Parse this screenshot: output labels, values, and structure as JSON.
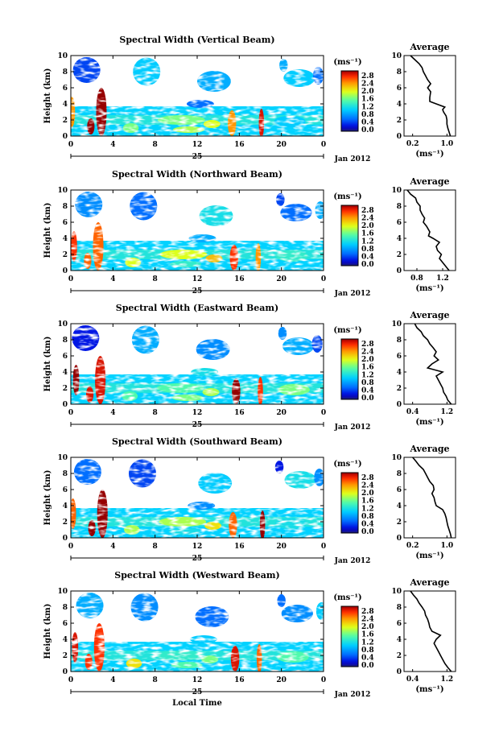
{
  "chart_data": [
    {
      "type": "heatmap",
      "title": "Spectral Width (Vertical Beam)",
      "ylabel": "Height (km)",
      "x_ticks": [
        "0",
        "4",
        "8",
        "12",
        "16",
        "20",
        "0"
      ],
      "y_ticks": [
        "0",
        "2",
        "4",
        "6",
        "8",
        "10"
      ],
      "ylim": [
        0,
        10
      ],
      "date_marker": "25",
      "date_label": "Jan 2012",
      "colorbar": {
        "unit_label": "(ms⁻¹)",
        "ticks": [
          "0.0",
          "0.4",
          "0.8",
          "1.2",
          "1.6",
          "2.0",
          "2.4",
          "2.8"
        ],
        "range": [
          0,
          2.8
        ]
      },
      "average": {
        "title": "Average",
        "xlabel": "(ms⁻¹)",
        "x_ticks": [
          "0.2",
          "1.0"
        ],
        "xlim": [
          0.0,
          1.2
        ],
        "height_km": [
          0,
          0.5,
          1,
          1.5,
          2,
          2.5,
          3,
          3.3,
          3.6,
          4,
          4.3,
          4.8,
          5.5,
          6,
          6.5,
          7,
          7.5,
          8,
          8.5,
          9,
          9.5,
          10
        ],
        "values": [
          1.08,
          1.05,
          1.02,
          1.0,
          1.0,
          0.98,
          0.92,
          0.9,
          0.95,
          0.75,
          0.6,
          0.6,
          0.62,
          0.55,
          0.62,
          0.55,
          0.5,
          0.45,
          0.42,
          0.35,
          0.25,
          0.15
        ]
      }
    },
    {
      "type": "heatmap",
      "title": "Spectral Width (Northward Beam)",
      "ylabel": "Height (km)",
      "x_ticks": [
        "0",
        "4",
        "8",
        "12",
        "16",
        "20",
        "0"
      ],
      "y_ticks": [
        "0",
        "2",
        "4",
        "6",
        "8",
        "10"
      ],
      "ylim": [
        0,
        10
      ],
      "date_marker": "25",
      "date_label": "Jan 2012",
      "colorbar": {
        "unit_label": "(ms⁻¹)",
        "ticks": [
          "0.0",
          "0.4",
          "0.8",
          "1.2",
          "1.6",
          "2.0",
          "2.4",
          "2.8"
        ],
        "range": [
          0,
          2.8
        ]
      },
      "average": {
        "title": "Average",
        "xlabel": "(ms⁻¹)",
        "x_ticks": [
          "0.8",
          "1.2"
        ],
        "xlim": [
          0.6,
          1.4
        ],
        "height_km": [
          0,
          0.5,
          1,
          1.5,
          2,
          2.5,
          3,
          3.5,
          4,
          4.3,
          4.8,
          5.5,
          6,
          6.5,
          7,
          7.5,
          8,
          8.5,
          9,
          9.5,
          10
        ],
        "values": [
          1.3,
          1.25,
          1.2,
          1.15,
          1.18,
          1.12,
          1.1,
          1.15,
          1.05,
          0.98,
          1.0,
          0.95,
          0.9,
          0.92,
          0.88,
          0.85,
          0.85,
          0.8,
          0.78,
          0.7,
          0.65
        ]
      }
    },
    {
      "type": "heatmap",
      "title": "Spectral Width (Eastward Beam)",
      "ylabel": "Height (km)",
      "x_ticks": [
        "0",
        "4",
        "8",
        "12",
        "16",
        "20",
        "0"
      ],
      "y_ticks": [
        "0",
        "2",
        "4",
        "6",
        "8",
        "10"
      ],
      "ylim": [
        0,
        10
      ],
      "date_marker": "25",
      "date_label": "Jan 2012",
      "colorbar": {
        "unit_label": "(ms⁻¹)",
        "ticks": [
          "0.0",
          "0.4",
          "0.8",
          "1.2",
          "1.6",
          "2.0",
          "2.4",
          "2.8"
        ],
        "range": [
          0,
          2.8
        ]
      },
      "average": {
        "title": "Average",
        "xlabel": "(ms⁻¹)",
        "x_ticks": [
          "0.4",
          "1.2"
        ],
        "xlim": [
          0.2,
          1.4
        ],
        "height_km": [
          0,
          0.5,
          1,
          1.5,
          2,
          2.5,
          3,
          3.5,
          4,
          4.5,
          5,
          5.5,
          6,
          6.5,
          7,
          7.5,
          8,
          8.5,
          9,
          9.5,
          10
        ],
        "values": [
          1.3,
          1.22,
          1.18,
          1.12,
          1.1,
          1.05,
          1.0,
          0.95,
          1.1,
          0.75,
          0.85,
          1.0,
          0.9,
          0.95,
          0.88,
          0.8,
          0.75,
          0.65,
          0.6,
          0.5,
          0.45
        ]
      }
    },
    {
      "type": "heatmap",
      "title": "Spectral Width (Southward Beam)",
      "ylabel": "Height (km)",
      "x_ticks": [
        "0",
        "4",
        "8",
        "12",
        "16",
        "20",
        "0"
      ],
      "y_ticks": [
        "0",
        "2",
        "4",
        "6",
        "8",
        "10"
      ],
      "ylim": [
        0,
        10
      ],
      "date_marker": "25",
      "date_label": "Jan 2012",
      "colorbar": {
        "unit_label": "(ms⁻¹)",
        "ticks": [
          "0.0",
          "0.4",
          "0.8",
          "1.2",
          "1.6",
          "2.0",
          "2.4",
          "2.8"
        ],
        "range": [
          0,
          2.8
        ]
      },
      "average": {
        "title": "Average",
        "xlabel": "(ms⁻¹)",
        "x_ticks": [
          "0.2",
          "1.0"
        ],
        "xlim": [
          0.0,
          1.2
        ],
        "height_km": [
          0,
          0.5,
          1,
          1.5,
          2,
          2.5,
          3,
          3.5,
          4,
          4.5,
          5,
          5.5,
          6,
          6.5,
          7,
          7.5,
          8,
          8.5,
          9,
          9.5,
          10
        ],
        "values": [
          1.1,
          1.08,
          1.05,
          1.02,
          1.0,
          0.98,
          0.95,
          0.9,
          0.75,
          0.72,
          0.7,
          0.65,
          0.7,
          0.68,
          0.6,
          0.55,
          0.5,
          0.45,
          0.35,
          0.28,
          0.2
        ]
      }
    },
    {
      "type": "heatmap",
      "title": "Spectral Width (Westward Beam)",
      "ylabel": "Height (km)",
      "xlabel": "Local Time",
      "x_ticks": [
        "0",
        "4",
        "8",
        "12",
        "16",
        "20",
        "0"
      ],
      "y_ticks": [
        "0",
        "2",
        "4",
        "6",
        "8",
        "10"
      ],
      "ylim": [
        0,
        10
      ],
      "date_marker": "25",
      "date_label": "Jan 2012",
      "colorbar": {
        "unit_label": "(ms⁻¹)",
        "ticks": [
          "0.0",
          "0.4",
          "0.8",
          "1.2",
          "1.6",
          "2.0",
          "2.4",
          "2.8"
        ],
        "range": [
          0,
          2.8
        ]
      },
      "average": {
        "title": "Average",
        "xlabel": "(ms⁻¹)",
        "x_ticks": [
          "0.4",
          "1.2"
        ],
        "xlim": [
          0.2,
          1.4
        ],
        "height_km": [
          0,
          0.5,
          1,
          1.5,
          2,
          2.5,
          3,
          3.5,
          4,
          4.5,
          5,
          5.5,
          6,
          6.5,
          7,
          7.5,
          8,
          8.5,
          9,
          9.5,
          10
        ],
        "values": [
          1.3,
          1.22,
          1.15,
          1.1,
          1.05,
          1.0,
          0.95,
          0.9,
          0.95,
          1.05,
          0.85,
          0.8,
          0.78,
          0.75,
          0.7,
          0.68,
          0.62,
          0.55,
          0.5,
          0.42,
          0.35
        ]
      }
    }
  ]
}
